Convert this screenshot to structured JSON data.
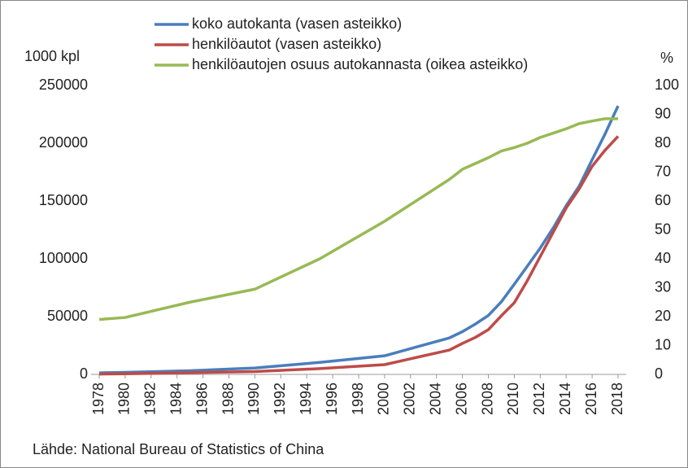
{
  "chart_data": {
    "type": "line",
    "y_label": "1000 kpl",
    "y2_label": "%",
    "source": "Lähde: National Bureau of Statistics of China",
    "x": [
      1978,
      1980,
      1985,
      1990,
      1995,
      2000,
      2005,
      2006,
      2007,
      2008,
      2009,
      2010,
      2011,
      2012,
      2013,
      2014,
      2015,
      2016,
      2017,
      2018
    ],
    "series": [
      {
        "name": "koko autokanta (vasen asteikko)",
        "color": "#4a7ebb",
        "values": [
          1360,
          1780,
          3210,
          5510,
          10400,
          16090,
          31600,
          36970,
          43580,
          50990,
          62810,
          78020,
          93560,
          109330,
          126700,
          145980,
          162840,
          185750,
          208070,
          232310
        ]
      },
      {
        "name": "henkilöautot (vasen asteikko)",
        "color": "#be4b48",
        "values": [
          300,
          500,
          1500,
          2500,
          5000,
          8450,
          21100,
          26800,
          32000,
          38700,
          50700,
          62000,
          81000,
          102000,
          123000,
          144000,
          160500,
          180000,
          194000,
          206000
        ]
      },
      {
        "name": "henkilöautojen osuus autokannasta (oikea asteikko)",
        "color": "#98b954",
        "axis": "y2",
        "values": [
          19,
          19.7,
          25,
          29.5,
          40,
          53,
          67.5,
          71,
          73,
          75,
          77.3,
          78.5,
          80,
          82,
          83.5,
          85,
          86.8,
          87.7,
          88.5,
          88.5
        ]
      }
    ],
    "xlim": [
      1978,
      2018
    ],
    "xticks": [
      1978,
      1980,
      1982,
      1984,
      1986,
      1988,
      1990,
      1992,
      1994,
      1996,
      1998,
      2000,
      2002,
      2004,
      2006,
      2008,
      2010,
      2012,
      2014,
      2016,
      2018
    ],
    "ylim": [
      0,
      250000
    ],
    "yticks": [
      0,
      50000,
      100000,
      150000,
      200000,
      250000
    ],
    "y2lim": [
      0,
      100
    ],
    "y2ticks": [
      0,
      10,
      20,
      30,
      40,
      50,
      60,
      70,
      80,
      90,
      100
    ],
    "grid": false
  }
}
